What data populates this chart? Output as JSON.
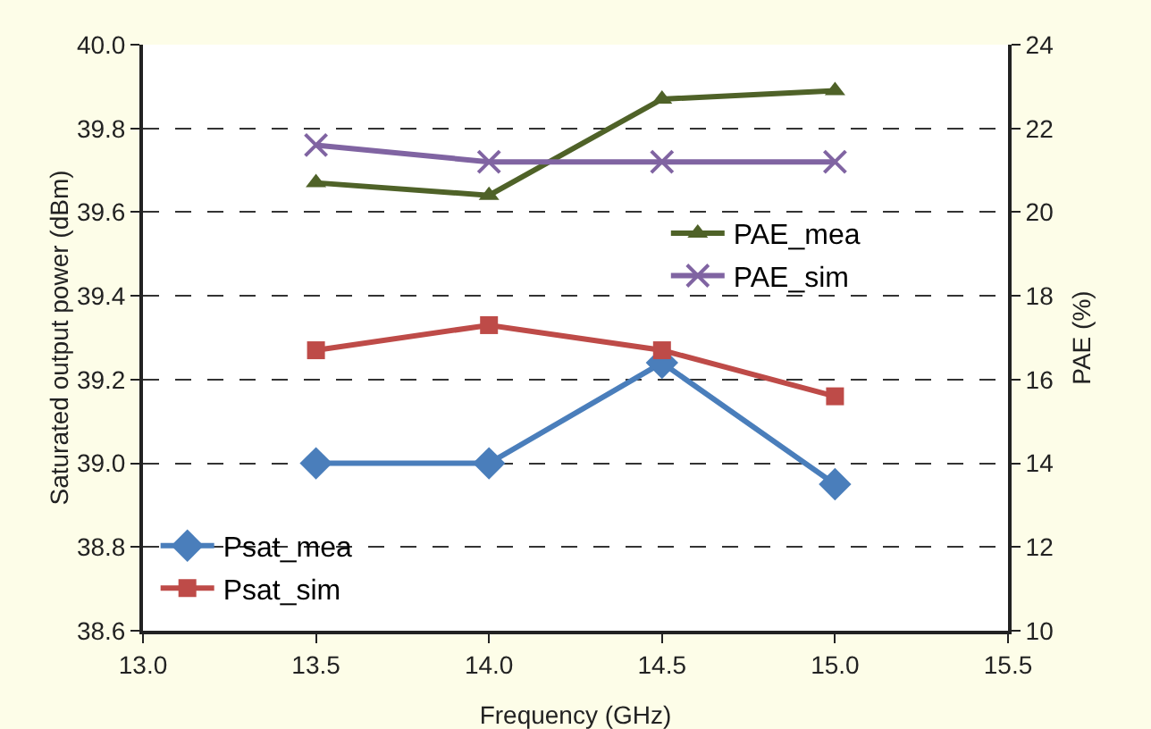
{
  "chart_data": {
    "type": "line",
    "xlabel": "Frequency (GHz)",
    "ylabel": "Saturated output power (dBm)",
    "y2label": "PAE (%)",
    "x": [
      13.5,
      14.0,
      14.5,
      15.0
    ],
    "xlim": [
      13.0,
      15.5
    ],
    "xticks": [
      {
        "value": 13,
        "label": "13.0"
      },
      {
        "value": 13.5,
        "label": "13.5"
      },
      {
        "value": 14,
        "label": "14.0"
      },
      {
        "value": 14.5,
        "label": "14.5"
      },
      {
        "value": 15,
        "label": "15.0"
      },
      {
        "value": 15.5,
        "label": "15.5"
      }
    ],
    "ylim": [
      38.6,
      40.0
    ],
    "yticks": [
      {
        "value": 38.6,
        "label": "38.6"
      },
      {
        "value": 38.8,
        "label": "38.8"
      },
      {
        "value": 39,
        "label": "39.0"
      },
      {
        "value": 39.2,
        "label": "39.2"
      },
      {
        "value": 39.4,
        "label": "39.4"
      },
      {
        "value": 39.6,
        "label": "39.6"
      },
      {
        "value": 39.8,
        "label": "39.8"
      },
      {
        "value": 40,
        "label": "40.0"
      }
    ],
    "y2lim": [
      10,
      24
    ],
    "y2ticks": [
      10,
      12,
      14,
      16,
      18,
      20,
      22,
      24
    ],
    "grid": "y",
    "legend": "bottom left",
    "series": [
      {
        "name": "Psat_mea",
        "color": "#4a7ebb",
        "marker": "diamond",
        "values": [
          39.0,
          39.0,
          39.24,
          38.95
        ]
      },
      {
        "name": "Psat_sim",
        "color": "#be4b48",
        "marker": "square",
        "values": [
          39.27,
          39.33,
          39.27,
          39.16
        ]
      },
      {
        "name": "PAE_mea",
        "color": "#4f6228",
        "marker": "triangle",
        "axis": "y2",
        "values": [
          20.7,
          20.4,
          22.7,
          22.9
        ]
      },
      {
        "name": "PAE_sim",
        "color": "#8064a2",
        "marker": "cross",
        "axis": "y2",
        "values": [
          21.6,
          21.2,
          21.2,
          21.2
        ]
      }
    ]
  }
}
